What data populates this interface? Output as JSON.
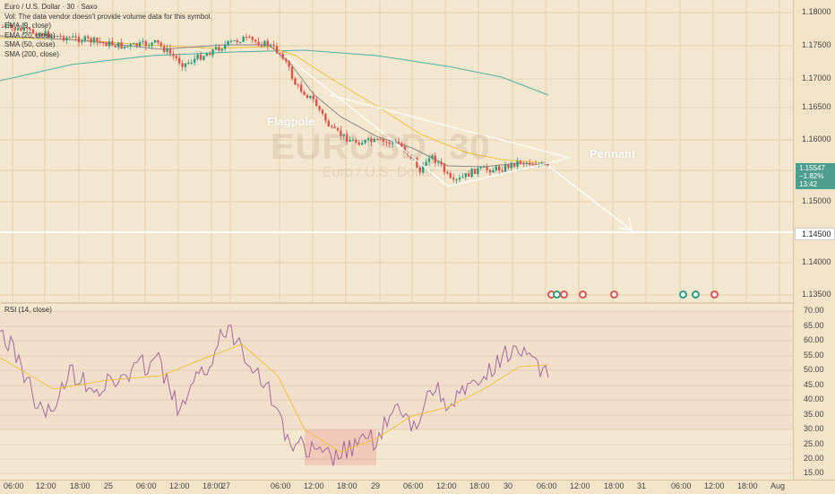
{
  "legend": {
    "title": "Euro / U.S. Dollar · 30 · Saxo",
    "volume_note": "Vol: The data vendor doesn't provide volume data for this symbol.",
    "ema9": "EMA (9, close)",
    "ema20": "EMA (20, close)",
    "sma50": "SMA (50, close)",
    "sma200": "SMA (200, close)"
  },
  "watermark": {
    "symbol": "EURUSD, 30",
    "name": "Euro / U.S. Dollar"
  },
  "annotations": {
    "flagpole": "Flagpole",
    "pennant": "Pennant"
  },
  "price_axis": [
    "1.18000",
    "1.17500",
    "1.17000",
    "1.16500",
    "1.16000",
    "1.15500",
    "1.15000",
    "1.14500",
    "1.14000",
    "1.13500"
  ],
  "current_price": {
    "price": "1.15547",
    "change": "−1.82%",
    "countdown": "13:42"
  },
  "level_label": "1.14500",
  "rsi": {
    "label": "RSI (14, close)",
    "axis": [
      "70.00",
      "65.00",
      "60.00",
      "55.00",
      "50.00",
      "45.00",
      "40.00",
      "35.00",
      "30.00",
      "25.00",
      "20.00",
      "15.00"
    ]
  },
  "time_axis": [
    "06:00",
    "12:00",
    "18:00",
    "25",
    "06:00",
    "12:00",
    "18:00",
    "27",
    "06:00",
    "12:00",
    "18:00",
    "29",
    "06:00",
    "12:00",
    "18:00",
    "30",
    "06:00",
    "12:00",
    "18:00",
    "31",
    "06:00",
    "12:00",
    "18:00",
    "Aug"
  ],
  "colors": {
    "up": "#2a9d7e",
    "down": "#e0524a",
    "ema9": "#f0c040",
    "ema20": "#8a8a8a",
    "sma50": "#e0b0b0",
    "sma200": "#50b0a0",
    "rsi": "#a06aa0",
    "rsi_ma": "#f0c040"
  }
}
